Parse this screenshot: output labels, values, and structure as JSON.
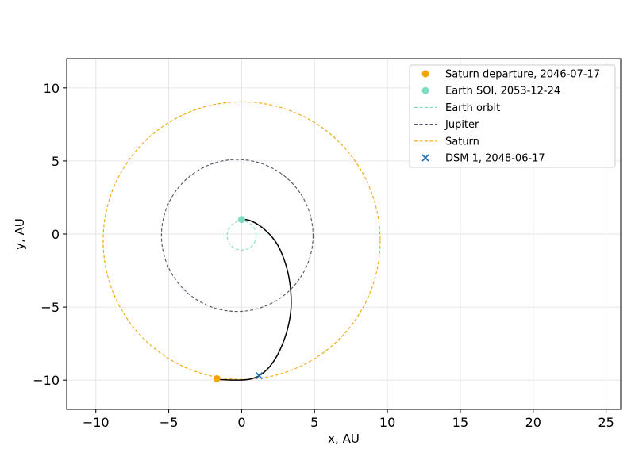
{
  "chart_data": {
    "type": "scatter",
    "title": "",
    "xlabel": "x, AU",
    "ylabel": "y, AU",
    "xlim": [
      -12,
      26
    ],
    "ylim": [
      -12,
      12
    ],
    "xticks": [
      -10,
      -5,
      0,
      5,
      10,
      15,
      20,
      25
    ],
    "yticks": [
      -10,
      -5,
      0,
      5,
      10
    ],
    "xtick_labels": [
      "−10",
      "−5",
      "0",
      "5",
      "10",
      "15",
      "20",
      "25"
    ],
    "ytick_labels": [
      "−10",
      "−5",
      "0",
      "5",
      "10"
    ],
    "grid": true,
    "legend_position": "top-right",
    "legend": [
      {
        "label": "Saturn departure, 2046-07-17",
        "marker": "dot",
        "color": "#f0a800"
      },
      {
        "label": "Earth SOI, 2053-12-24",
        "marker": "dot",
        "color": "#7fdcc4"
      },
      {
        "label": "Earth orbit",
        "marker": "dash",
        "color": "#7fdcc4"
      },
      {
        "label": "Jupiter",
        "marker": "dash",
        "color": "#555566"
      },
      {
        "label": "Saturn",
        "marker": "dash",
        "color": "#f0a800"
      },
      {
        "label": "DSM 1, 2048-06-17",
        "marker": "x",
        "color": "#1f6fb4"
      }
    ],
    "orbits": [
      {
        "name": "Earth orbit",
        "center": [
          0,
          -0.1
        ],
        "radius": 1.0,
        "color": "#7fdcc4"
      },
      {
        "name": "Jupiter",
        "center": [
          -0.3,
          -0.1
        ],
        "radius": 5.2,
        "color": "#555566"
      },
      {
        "name": "Saturn",
        "center": [
          0,
          -0.45
        ],
        "radius": 9.5,
        "color": "#f0a800"
      }
    ],
    "points": [
      {
        "name": "Saturn departure, 2046-07-17",
        "x": -1.7,
        "y": -9.9,
        "marker": "dot",
        "color": "#f0a800"
      },
      {
        "name": "Earth SOI, 2053-12-24",
        "x": 0.0,
        "y": 1.0,
        "marker": "dot",
        "color": "#7fdcc4"
      },
      {
        "name": "DSM 1, 2048-06-17",
        "x": 1.2,
        "y": -9.7,
        "marker": "x",
        "color": "#1f6fb4"
      }
    ],
    "trajectory": {
      "color": "#000000",
      "x": [
        -1.7,
        -0.5,
        0.5,
        1.2,
        1.9,
        2.5,
        3.0,
        3.3,
        3.4,
        3.3,
        3.0,
        2.5,
        1.9,
        1.2,
        0.5,
        0.0
      ],
      "y": [
        -9.95,
        -10.0,
        -9.95,
        -9.7,
        -9.1,
        -8.2,
        -7.0,
        -5.8,
        -4.7,
        -3.3,
        -2.0,
        -0.8,
        0.0,
        0.6,
        0.95,
        1.0
      ]
    }
  }
}
